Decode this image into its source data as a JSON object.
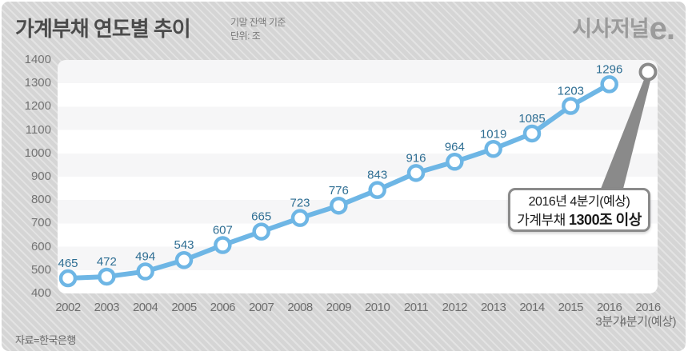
{
  "header": {
    "title": "가계부채 연도별 추이",
    "subtitle_line1": "기말 잔액 기준",
    "subtitle_line2": "단위: 조",
    "logo_text": "시사저널",
    "logo_e": "e."
  },
  "chart_data": {
    "type": "line",
    "title": "가계부채 연도별 추이",
    "basis_note": "기말 잔액 기준",
    "unit_label": "단위: 조",
    "categories": [
      "2002",
      "2003",
      "2004",
      "2005",
      "2006",
      "2007",
      "2008",
      "2009",
      "2010",
      "2011",
      "2012",
      "2013",
      "2014",
      "2015",
      "2016 3분기",
      "2016 4분기(예상)"
    ],
    "category_lines": [
      [
        "2002"
      ],
      [
        "2003"
      ],
      [
        "2004"
      ],
      [
        "2005"
      ],
      [
        "2006"
      ],
      [
        "2007"
      ],
      [
        "2008"
      ],
      [
        "2009"
      ],
      [
        "2010"
      ],
      [
        "2011"
      ],
      [
        "2012"
      ],
      [
        "2013"
      ],
      [
        "2014"
      ],
      [
        "2015"
      ],
      [
        "2016",
        "3분기"
      ],
      [
        "2016",
        "4분기(예상)"
      ]
    ],
    "values": [
      465,
      472,
      494,
      543,
      607,
      665,
      723,
      776,
      843,
      916,
      964,
      1019,
      1085,
      1203,
      1296
    ],
    "forecast_annotation": "2016년 4분기(예상) 가계부채 1300조 이상",
    "y_axis": {
      "min": 400,
      "max": 1400,
      "step": 100
    },
    "grid": "alternating horizontal bands",
    "legend": "none"
  },
  "callout": {
    "line1": "2016년 4분기(예상)",
    "line2_normal": "가계부채 ",
    "line2_bold": "1300조 이상"
  },
  "source": "자료=한국은행",
  "colors": {
    "line_blue": "#6eb6e5",
    "value_label_blue": "#2e6e93",
    "forecast_gray": "#8a8a8a",
    "tick_gray": "#6e6e6e"
  }
}
